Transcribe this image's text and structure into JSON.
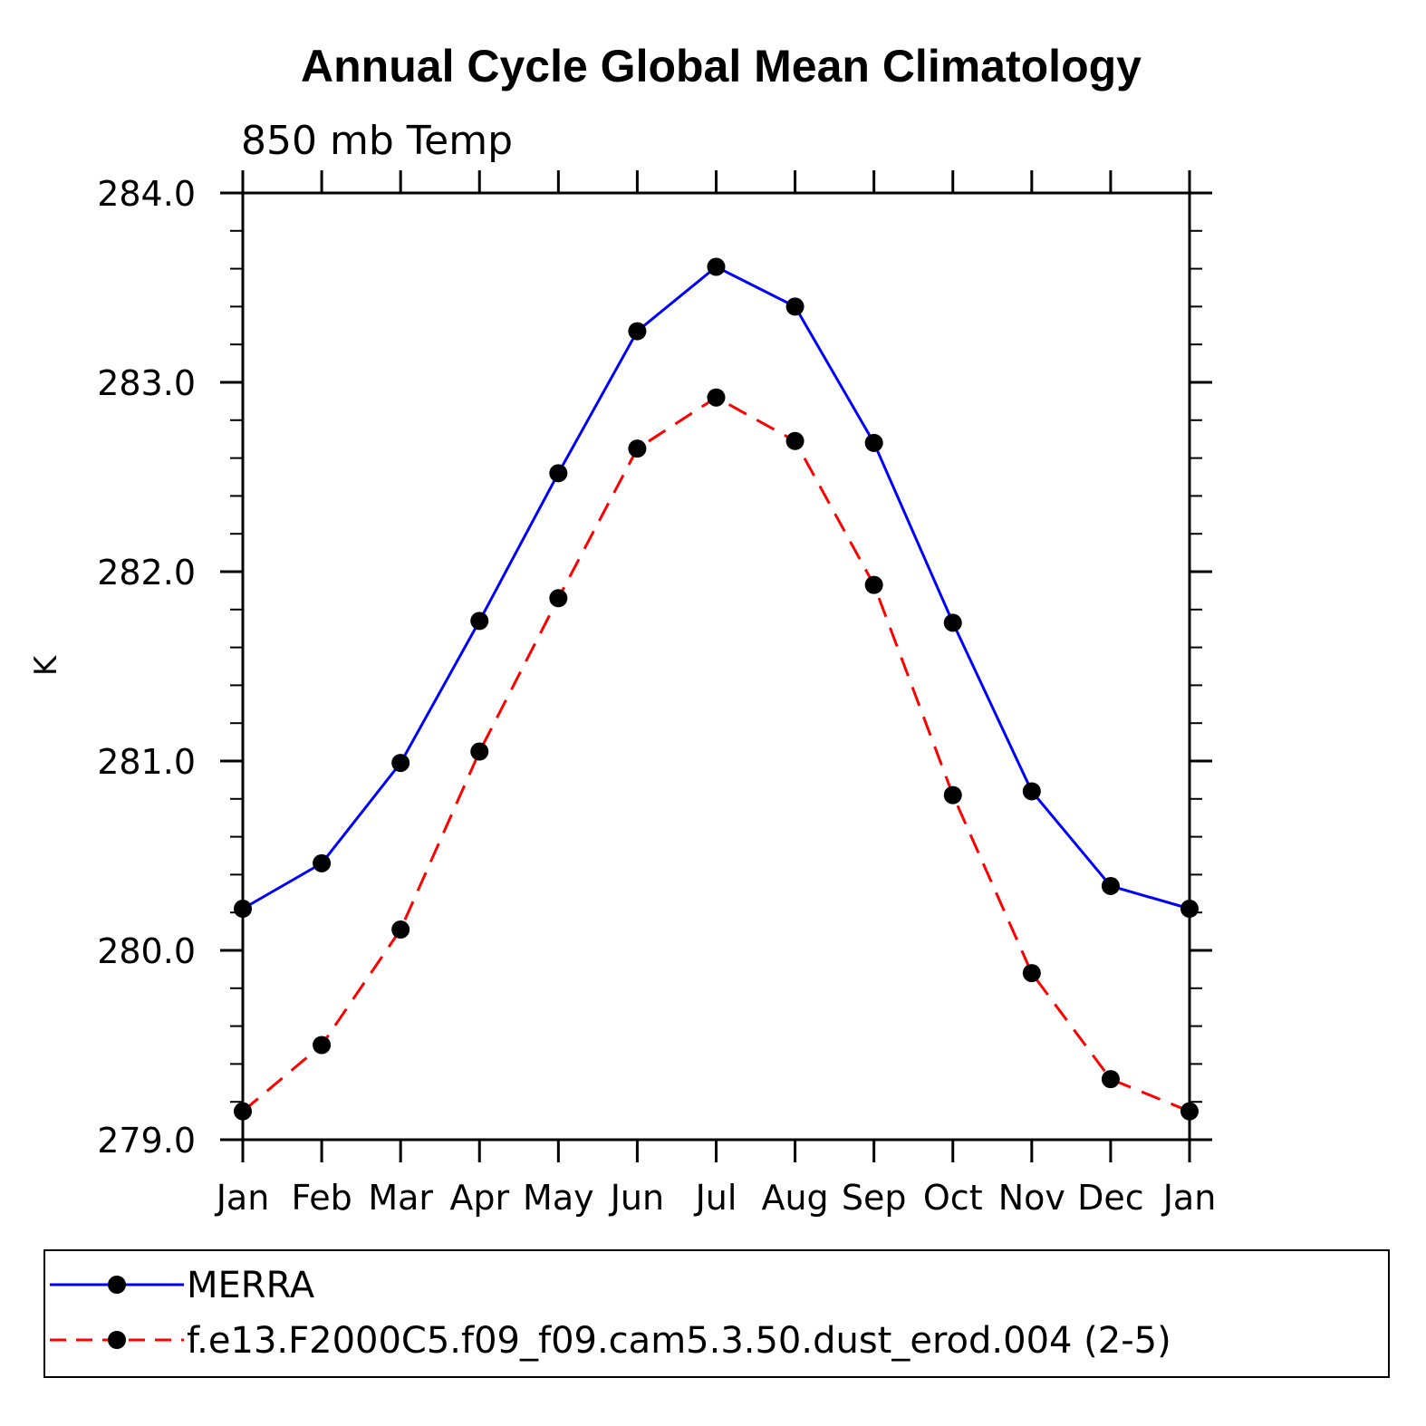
{
  "chart_data": {
    "type": "line",
    "title": "Annual Cycle Global Mean Climatology",
    "subtitle": "850 mb Temp",
    "xlabel": "",
    "ylabel": "K",
    "categories": [
      "Jan",
      "Feb",
      "Mar",
      "Apr",
      "May",
      "Jun",
      "Jul",
      "Aug",
      "Sep",
      "Oct",
      "Nov",
      "Dec",
      "Jan"
    ],
    "ylim": [
      279.0,
      284.0
    ],
    "yticks": [
      279.0,
      280.0,
      281.0,
      282.0,
      283.0,
      284.0
    ],
    "ytick_labels": [
      "279.0",
      "280.0",
      "281.0",
      "282.0",
      "283.0",
      "284.0"
    ],
    "grid": false,
    "legend_position": "bottom",
    "series": [
      {
        "name": "MERRA",
        "color": "#0000ff",
        "line_style": "solid",
        "marker": "filled-circle",
        "values": [
          280.22,
          280.46,
          280.99,
          281.74,
          282.52,
          283.27,
          283.61,
          283.4,
          282.68,
          281.73,
          280.84,
          280.34,
          280.22
        ]
      },
      {
        "name": "f.e13.F2000C5.f09_f09.cam5.3.50.dust_erod.004 (2-5)",
        "color": "#ff0000",
        "line_style": "dashed",
        "marker": "filled-circle",
        "values": [
          279.15,
          279.5,
          280.11,
          281.05,
          281.86,
          282.65,
          282.92,
          282.69,
          281.93,
          280.82,
          279.88,
          279.32,
          279.15
        ]
      }
    ]
  }
}
